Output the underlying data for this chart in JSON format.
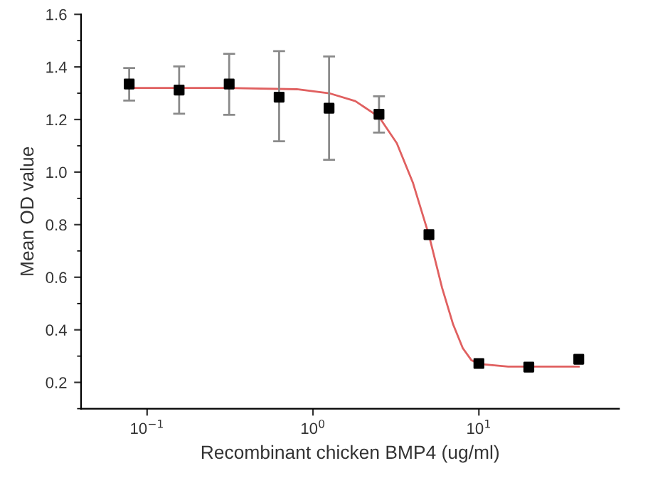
{
  "chart_data": {
    "type": "scatter",
    "xlabel": "Recombinant chicken BMP4 (ug/ml)",
    "ylabel": "Mean OD value",
    "log": "x",
    "xlim": [
      0.04,
      70
    ],
    "xticks": [
      {
        "value": 0.1,
        "label": "10$^{−1}$"
      },
      {
        "value": 1,
        "label": "10$^{0}$"
      },
      {
        "value": 10,
        "label": "10$^{1}$"
      }
    ],
    "ylim": [
      0.1,
      1.6
    ],
    "yticks": [
      0.2,
      0.4,
      0.6,
      0.8,
      {
        "value": 1.0,
        "label": "1.0"
      },
      1.2,
      1.4,
      1.6
    ],
    "series": [
      {
        "color": "#000000",
        "marker": "square",
        "x": [
          0.078,
          0.156,
          0.3125,
          0.625,
          1.25,
          2.5,
          5,
          10,
          20,
          40
        ],
        "values": [
          1.335,
          1.312,
          1.335,
          1.285,
          1.243,
          1.22,
          0.762,
          0.272,
          0.258,
          0.288
        ],
        "errors": [
          [
            1.272,
            1.396
          ],
          [
            1.222,
            1.402
          ],
          [
            1.218,
            1.45
          ],
          [
            1.117,
            1.46
          ],
          [
            1.047,
            1.44
          ],
          [
            1.15,
            1.288
          ],
          null,
          null,
          null,
          null
        ]
      },
      {
        "type": "line",
        "color": "#e06060",
        "marker": "none",
        "line_style": "solid",
        "x": [
          0.078,
          0.3,
          0.8,
          1.25,
          1.8,
          2.5,
          3.2,
          4,
          5,
          6,
          7,
          8,
          9,
          10,
          15,
          40
        ],
        "values": [
          1.32,
          1.32,
          1.315,
          1.3,
          1.27,
          1.21,
          1.11,
          0.96,
          0.76,
          0.56,
          0.42,
          0.33,
          0.285,
          0.27,
          0.26,
          0.26
        ]
      }
    ]
  }
}
